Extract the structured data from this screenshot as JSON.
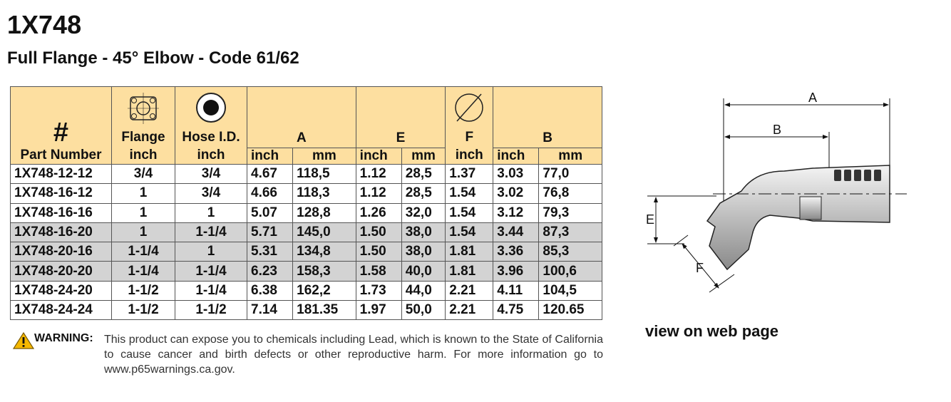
{
  "title": "1X748",
  "subtitle": "Full Flange - 45° Elbow - Code 61/62",
  "table": {
    "columns": [
      {
        "symbol": "#",
        "label": "Part Number"
      },
      {
        "label": "Flange",
        "unit": "inch"
      },
      {
        "label": "Hose I.D.",
        "unit": "inch"
      },
      {
        "label": "A",
        "units": [
          "inch",
          "mm"
        ]
      },
      {
        "label": "E",
        "units": [
          "inch",
          "mm"
        ]
      },
      {
        "label": "F",
        "unit": "inch"
      },
      {
        "label": "B",
        "units": [
          "inch",
          "mm"
        ]
      }
    ],
    "rows": [
      {
        "cells": [
          "1X748-12-12",
          "3/4",
          "3/4",
          "4.67",
          "118,5",
          "1.12",
          "28,5",
          "1.37",
          "3.03",
          "77,0"
        ],
        "shaded": false
      },
      {
        "cells": [
          "1X748-16-12",
          "1",
          "3/4",
          "4.66",
          "118,3",
          "1.12",
          "28,5",
          "1.54",
          "3.02",
          "76,8"
        ],
        "shaded": false
      },
      {
        "cells": [
          "1X748-16-16",
          "1",
          "1",
          "5.07",
          "128,8",
          "1.26",
          "32,0",
          "1.54",
          "3.12",
          "79,3"
        ],
        "shaded": false
      },
      {
        "cells": [
          "1X748-16-20",
          "1",
          "1-1/4",
          "5.71",
          "145,0",
          "1.50",
          "38,0",
          "1.54",
          "3.44",
          "87,3"
        ],
        "shaded": true
      },
      {
        "cells": [
          "1X748-20-16",
          "1-1/4",
          "1",
          "5.31",
          "134,8",
          "1.50",
          "38,0",
          "1.81",
          "3.36",
          "85,3"
        ],
        "shaded": true
      },
      {
        "cells": [
          "1X748-20-20",
          "1-1/4",
          "1-1/4",
          "6.23",
          "158,3",
          "1.58",
          "40,0",
          "1.81",
          "3.96",
          "100,6"
        ],
        "shaded": true
      },
      {
        "cells": [
          "1X748-24-20",
          "1-1/2",
          "1-1/4",
          "6.38",
          "162,2",
          "1.73",
          "44,0",
          "2.21",
          "4.11",
          "104,5"
        ],
        "shaded": false
      },
      {
        "cells": [
          "1X748-24-24",
          "1-1/2",
          "1-1/2",
          "7.14",
          "181.35",
          "1.97",
          "50,0",
          "2.21",
          "4.75",
          "120.65"
        ],
        "shaded": false
      }
    ]
  },
  "warning": {
    "label": "WARNING:",
    "text": "This product can expose you to chemicals including Lead, which is known to the State of California to cause cancer and birth defects or other reproductive harm.  For more information go to www.p65warnings.ca.gov."
  },
  "diagram": {
    "labels": {
      "A": "A",
      "B": "B",
      "E": "E",
      "F": "F"
    }
  },
  "link": "view on web page"
}
